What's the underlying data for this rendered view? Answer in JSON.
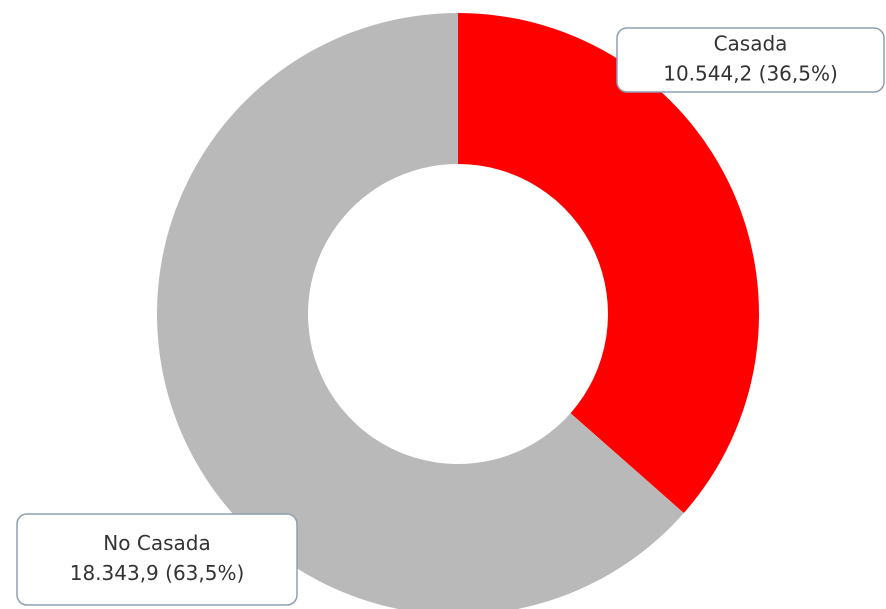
{
  "chart_data": {
    "type": "donut",
    "categories": [
      "Casada",
      "No Casada"
    ],
    "values": [
      10544.2,
      18343.9
    ],
    "value_labels": [
      "10.544,2 (36,5%)",
      "18.343,9 (63,5%)"
    ],
    "colors": [
      "#ff0000",
      "#b9b9b9"
    ]
  }
}
